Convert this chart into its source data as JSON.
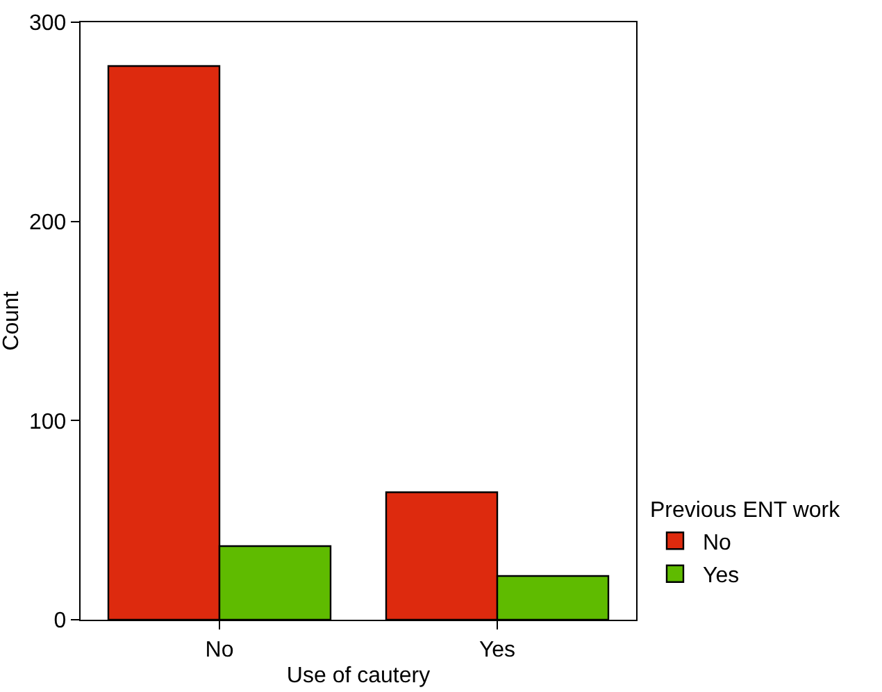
{
  "chart_data": {
    "type": "bar",
    "xlabel": "Use of cautery",
    "ylabel": "Count",
    "legend_title": "Previous ENT work",
    "categories": [
      "No",
      "Yes"
    ],
    "series": [
      {
        "name": "No",
        "color": "#dd2a0e",
        "values": [
          278,
          64
        ]
      },
      {
        "name": "Yes",
        "color": "#5fbb00",
        "values": [
          37,
          22
        ]
      }
    ],
    "ylim": [
      0,
      300
    ],
    "yticks": [
      0,
      100,
      200,
      300
    ],
    "grid": false,
    "legend": "right"
  }
}
